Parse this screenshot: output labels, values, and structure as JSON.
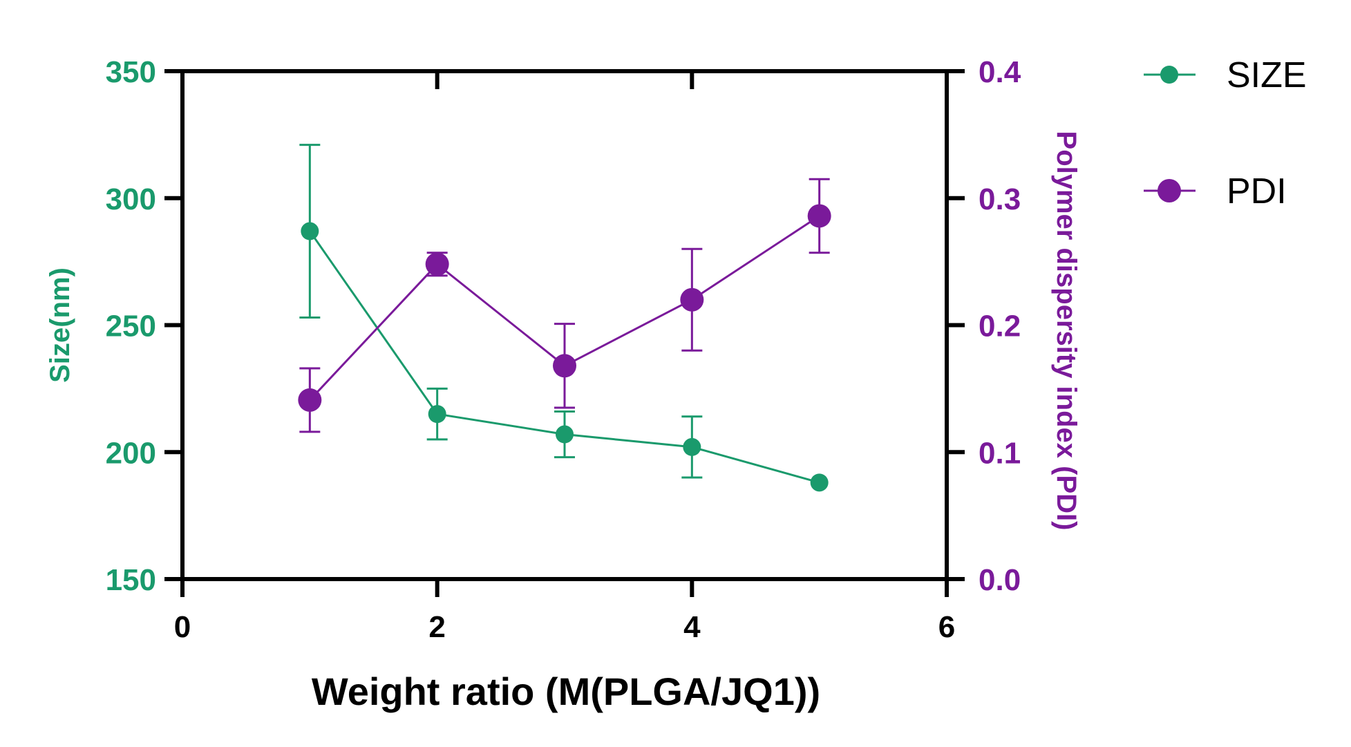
{
  "chart_data": {
    "type": "line",
    "x": [
      1,
      2,
      3,
      4,
      5
    ],
    "xlabel": "Weight ratio (M(PLGA/JQ1))",
    "xlim": [
      0,
      6
    ],
    "xticks": [
      "0",
      "2",
      "4",
      "6"
    ],
    "ylabel": "Size(nm)",
    "ylim": [
      150,
      350
    ],
    "yticks": [
      "150",
      "200",
      "250",
      "300",
      "350"
    ],
    "y2label": "Polymer dispersity index (PDI)",
    "y2lim": [
      0.0,
      0.4
    ],
    "y2ticks": [
      "0.0",
      "0.1",
      "0.2",
      "0.3",
      "0.4"
    ],
    "series": [
      {
        "name": "SIZE",
        "axis": "left",
        "color": "#1a9a6c",
        "values": [
          287,
          215,
          207,
          202,
          188
        ],
        "errors": [
          34,
          10,
          9,
          12,
          0
        ]
      },
      {
        "name": "PDI",
        "axis": "right",
        "color": "#7a1a9a",
        "values": [
          0.141,
          0.248,
          0.168,
          0.22,
          0.286
        ],
        "errors": [
          0.025,
          0.009,
          0.033,
          0.04,
          0.029
        ]
      }
    ],
    "legend": "top-right",
    "grid": false
  }
}
